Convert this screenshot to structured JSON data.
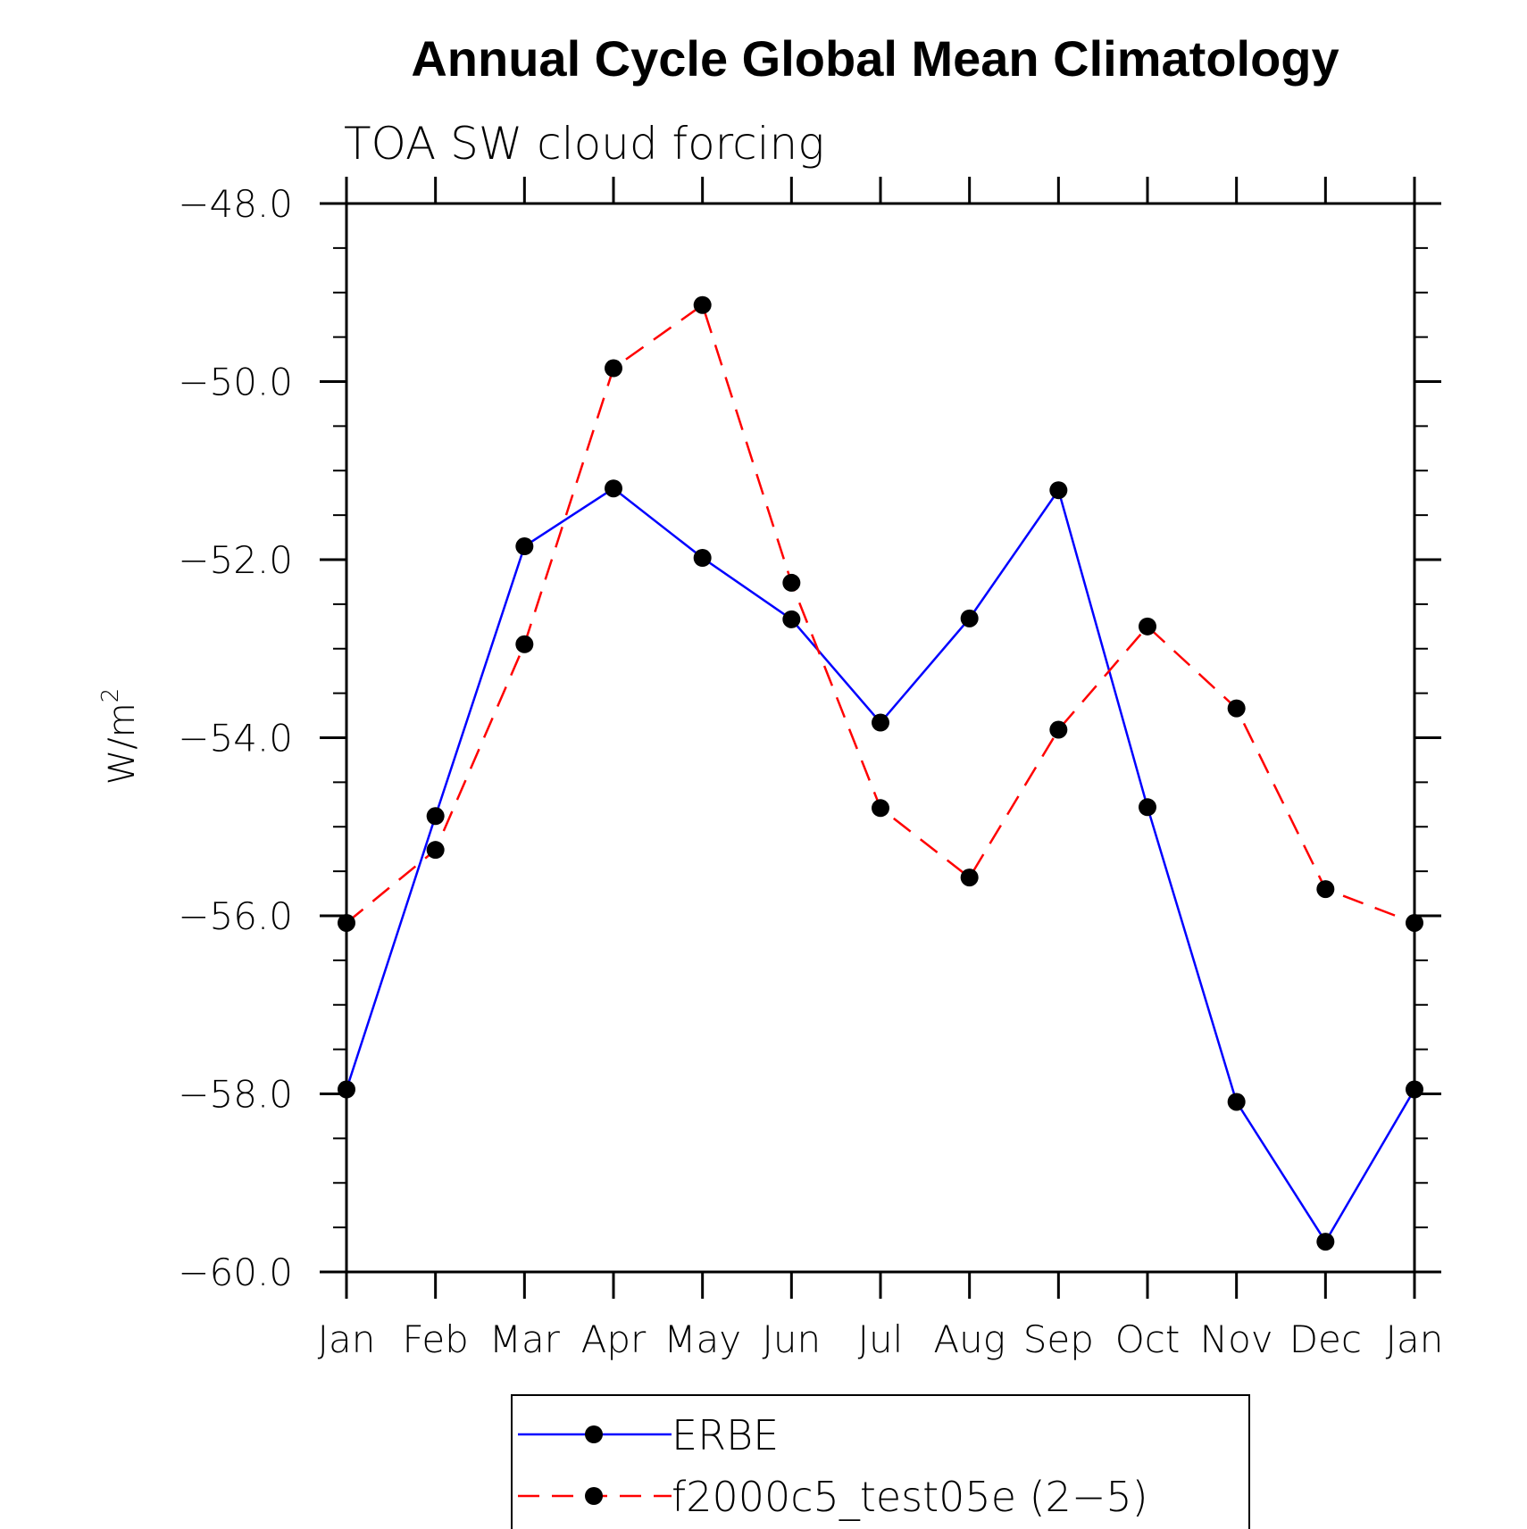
{
  "chart_data": {
    "type": "line",
    "title": "Annual Cycle Global Mean Climatology",
    "subtitle": "TOA SW cloud forcing",
    "ylabel": "W/m",
    "ylabel_sup": "2",
    "xlabel": "",
    "categories": [
      "Jan",
      "Feb",
      "Mar",
      "Apr",
      "May",
      "Jun",
      "Jul",
      "Aug",
      "Sep",
      "Oct",
      "Nov",
      "Dec",
      "Jan"
    ],
    "ylim": [
      -60.0,
      -48.0
    ],
    "yticks": [
      -60.0,
      -58.0,
      -56.0,
      -54.0,
      -52.0,
      -50.0,
      -48.0
    ],
    "ytick_labels": [
      "−60.0",
      "−58.0",
      "−56.0",
      "−54.0",
      "−52.0",
      "−50.0",
      "−48.0"
    ],
    "series": [
      {
        "name": "ERBE",
        "color": "#0000ff",
        "dash": "solid",
        "values": [
          -57.95,
          -54.88,
          -51.85,
          -51.2,
          -51.98,
          -52.67,
          -53.83,
          -52.66,
          -51.22,
          -54.78,
          -58.09,
          -59.66,
          -57.95
        ]
      },
      {
        "name": "f2000c5_test05e (2−5)",
        "color": "#ff0000",
        "dash": "dashed",
        "values": [
          -56.08,
          -55.26,
          -52.95,
          -49.85,
          -49.14,
          -52.26,
          -54.79,
          -55.57,
          -53.91,
          -52.75,
          -53.67,
          -55.7,
          -56.08
        ]
      }
    ],
    "legend_position": "bottom-center"
  }
}
